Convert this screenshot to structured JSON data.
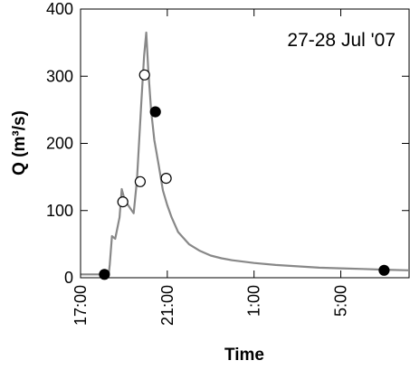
{
  "chart_data": {
    "type": "line",
    "annotation": "27-28 Jul '07",
    "xlabel": "Time",
    "ylabel": "Q (m³/s)",
    "xlim_hours": [
      17.0,
      32.15
    ],
    "ylim": [
      0,
      400
    ],
    "x_ticks": [
      {
        "hour": 17.0,
        "label": "17:00"
      },
      {
        "hour": 21.0,
        "label": "21:00"
      },
      {
        "hour": 25.0,
        "label": "1:00"
      },
      {
        "hour": 29.0,
        "label": "5:00"
      }
    ],
    "y_ticks": [
      0,
      100,
      200,
      300,
      400
    ],
    "grid": false,
    "series": [
      {
        "style": "line",
        "color": "#888888",
        "points": [
          [
            17.0,
            5
          ],
          [
            18.3,
            5
          ],
          [
            18.35,
            20
          ],
          [
            18.45,
            62
          ],
          [
            18.6,
            58
          ],
          [
            18.8,
            90
          ],
          [
            18.9,
            132
          ],
          [
            19.0,
            120
          ],
          [
            19.15,
            110
          ],
          [
            19.3,
            103
          ],
          [
            19.45,
            96
          ],
          [
            19.6,
            145
          ],
          [
            19.8,
            260
          ],
          [
            19.93,
            330
          ],
          [
            20.03,
            365
          ],
          [
            20.12,
            310
          ],
          [
            20.25,
            250
          ],
          [
            20.4,
            205
          ],
          [
            20.6,
            168
          ],
          [
            20.8,
            130
          ],
          [
            21.0,
            108
          ],
          [
            21.2,
            90
          ],
          [
            21.5,
            68
          ],
          [
            22.0,
            50
          ],
          [
            22.5,
            40
          ],
          [
            23.0,
            33
          ],
          [
            23.5,
            29
          ],
          [
            24.0,
            26
          ],
          [
            25.0,
            22
          ],
          [
            26.0,
            19
          ],
          [
            27.0,
            17
          ],
          [
            28.0,
            15
          ],
          [
            29.0,
            14
          ],
          [
            30.0,
            13
          ],
          [
            31.0,
            12
          ],
          [
            32.15,
            11
          ]
        ]
      },
      {
        "style": "open-circle",
        "points": [
          [
            18.95,
            113
          ],
          [
            19.75,
            143
          ],
          [
            19.95,
            302
          ],
          [
            20.95,
            148
          ]
        ]
      },
      {
        "style": "filled-circle",
        "points": [
          [
            18.1,
            5
          ],
          [
            20.45,
            247
          ],
          [
            31.0,
            11
          ]
        ]
      }
    ]
  }
}
